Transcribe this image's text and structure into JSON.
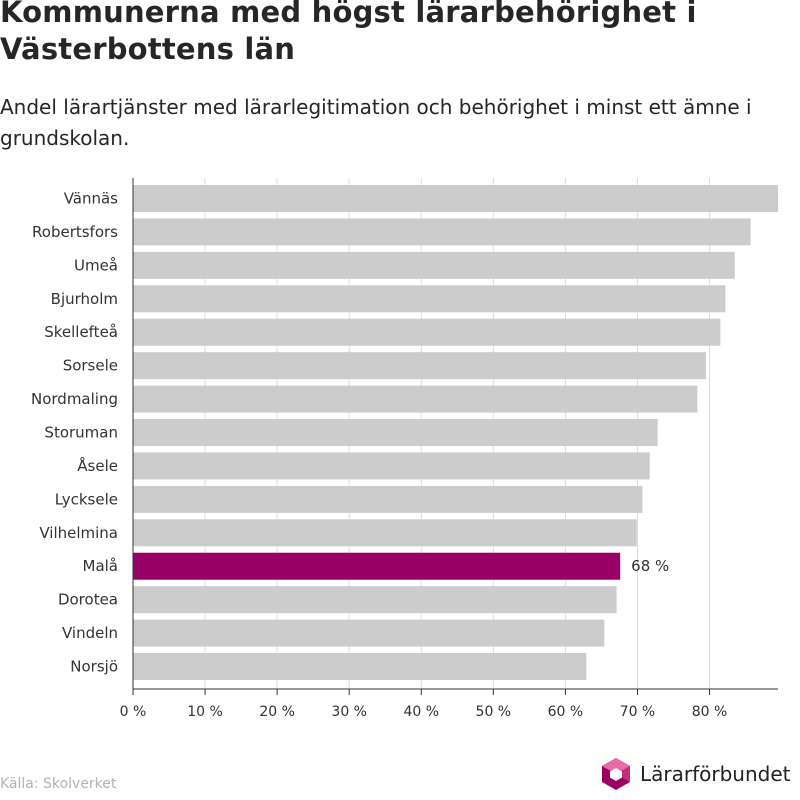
{
  "title": "Kommunerna med högst lärarbehörighet i Västerbottens län",
  "subtitle": "Andel lärartjänster med lärarlegitimation och behörighet i minst ett ämne i grundskolan.",
  "source": "Källa: Skolverket",
  "logo_text": "Lärarförbundet",
  "colors": {
    "bar": "#cccccc",
    "highlight": "#990066",
    "grid": "#dddddd",
    "axis": "#333333",
    "logo_dark": "#990066",
    "logo_light": "#e86aa6"
  },
  "chart_data": {
    "type": "bar",
    "orientation": "horizontal",
    "categories": [
      "Vännäs",
      "Robertsfors",
      "Umeå",
      "Bjurholm",
      "Skellefteå",
      "Sorsele",
      "Nordmaling",
      "Storuman",
      "Åsele",
      "Lycksele",
      "Vilhelmina",
      "Malå",
      "Dorotea",
      "Vindeln",
      "Norsjö"
    ],
    "values": [
      89.5,
      85.7,
      83.5,
      82.2,
      81.5,
      79.5,
      78.3,
      72.8,
      71.7,
      70.7,
      69.9,
      67.6,
      67.1,
      65.4,
      62.9
    ],
    "highlight_category": "Malå",
    "data_labels": [
      {
        "category": "Malå",
        "text": "68 %"
      }
    ],
    "xticks": [
      0,
      10,
      20,
      30,
      40,
      50,
      60,
      70,
      80
    ],
    "xtick_labels": [
      "0 %",
      "10 %",
      "20 %",
      "30 %",
      "40 %",
      "50 %",
      "60 %",
      "70 %",
      "80 %"
    ],
    "xlim": [
      0,
      89.5
    ],
    "xlabel": "",
    "ylabel": "",
    "grid": "vertical"
  }
}
